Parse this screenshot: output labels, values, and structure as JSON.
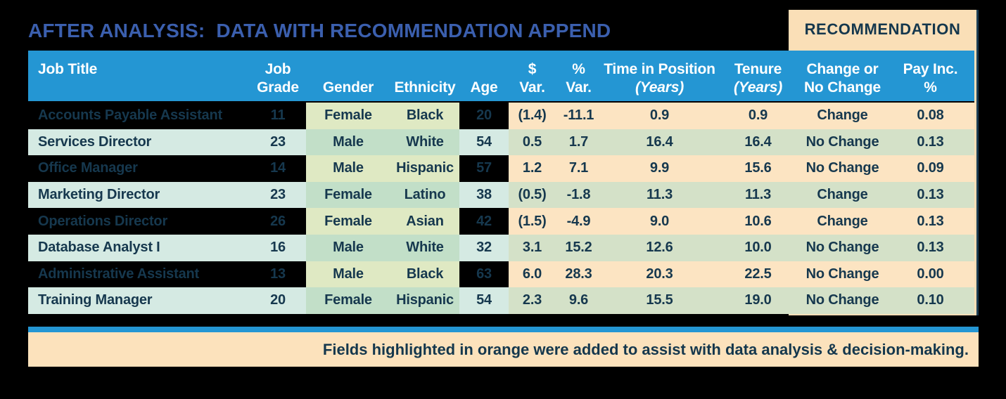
{
  "title": "AFTER ANALYSIS:  DATA WITH RECOMMENDATION APPEND",
  "recommendation_label": "RECOMMENDATION",
  "footer_note": "Fields highlighted in orange were added to assist with data analysis & decision-making.",
  "colors": {
    "background": "#000000",
    "title_blue": "#3b5fae",
    "header_blue": "#2496d3",
    "navy_text": "#16384e",
    "teal_row": "#d5eae3",
    "green_light": "#dfe9c3",
    "green_mint": "#c2dfc8",
    "peach_row": "#fce4c2",
    "green_olive": "#d4e1c8",
    "recommendation_peach": "#fadfb7",
    "footer_peach": "#fce2bc"
  },
  "chart_data": {
    "type": "table",
    "title": "AFTER ANALYSIS:  DATA WITH RECOMMENDATION APPEND",
    "columns": [
      {
        "line1": "Job Title",
        "line2": ""
      },
      {
        "line1": "Job",
        "line2": "Grade"
      },
      {
        "line1": "",
        "line2": "Gender"
      },
      {
        "line1": "",
        "line2": "Ethnicity"
      },
      {
        "line1": "",
        "line2": "Age"
      },
      {
        "line1": "$",
        "line2": "Var."
      },
      {
        "line1": "%",
        "line2": "Var."
      },
      {
        "line1": "Time in Position",
        "line2": "(Years)",
        "italic2": true
      },
      {
        "line1": "Tenure",
        "line2": "(Years)",
        "italic2": true
      },
      {
        "line1": "Change or",
        "line2": "No Change"
      },
      {
        "line1": "Pay Inc.",
        "line2": "%"
      }
    ],
    "rows": [
      [
        "Accounts Payable Assistant",
        "11",
        "Female",
        "Black",
        "20",
        "(1.4)",
        "-11.1",
        "0.9",
        "0.9",
        "Change",
        "0.08"
      ],
      [
        "Services Director",
        "23",
        "Male",
        "White",
        "54",
        "0.5",
        "1.7",
        "16.4",
        "16.4",
        "No Change",
        "0.13"
      ],
      [
        "Office Manager",
        "14",
        "Male",
        "Hispanic",
        "57",
        "1.2",
        "7.1",
        "9.9",
        "15.6",
        "No Change",
        "0.09"
      ],
      [
        "Marketing Director",
        "23",
        "Female",
        "Latino",
        "38",
        "(0.5)",
        "-1.8",
        "11.3",
        "11.3",
        "Change",
        "0.13"
      ],
      [
        "Operations Director",
        "26",
        "Female",
        "Asian",
        "42",
        "(1.5)",
        "-4.9",
        "9.0",
        "10.6",
        "Change",
        "0.13"
      ],
      [
        "Database Analyst I",
        "16",
        "Male",
        "White",
        "32",
        "3.1",
        "15.2",
        "12.6",
        "10.0",
        "No Change",
        "0.13"
      ],
      [
        "Administrative Assistant",
        "13",
        "Male",
        "Black",
        "63",
        "6.0",
        "28.3",
        "20.3",
        "22.5",
        "No Change",
        "0.00"
      ],
      [
        "Training Manager",
        "20",
        "Female",
        "Hispanic",
        "54",
        "2.3",
        "9.6",
        "15.5",
        "19.0",
        "No Change",
        "0.10"
      ]
    ]
  }
}
